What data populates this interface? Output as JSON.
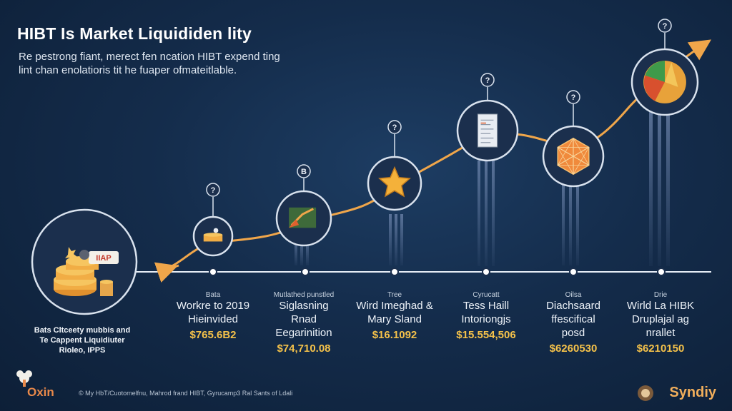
{
  "header": {
    "title": "HIBT Is Market Liquididen lity",
    "subtitle_line1": "Re pestrong fiant, merect fen ncation HIBT expend ting",
    "subtitle_line2": "lint chan enolatioris tit he fuaper ofmateitlable."
  },
  "left_node": {
    "badge": "IIAP",
    "description_line1": "Bats Cltceety mubbis and",
    "description_line2": "Te Cappent Liquidiuter",
    "description_line3": "Rioleo, IPPS"
  },
  "milestones": [
    {
      "small": "Bata",
      "name_line1": "Workre to 2019",
      "name_line2": "Hieinvided",
      "name_line3": "",
      "value": "$765.6B2",
      "badge": "?",
      "icon": "coin-stack-icon"
    },
    {
      "small": "Mutlathed punstled",
      "name_line1": "Siglasning",
      "name_line2": "Rnad",
      "name_line3": "Eegarinition",
      "value": "$74,710.08",
      "badge": "B",
      "icon": "rocket-chart-icon"
    },
    {
      "small": "Tree",
      "name_line1": "Wird Imeghad &",
      "name_line2": "Mary Sland",
      "name_line3": "",
      "value": "$16.1092",
      "badge": "?",
      "icon": "star-icon"
    },
    {
      "small": "Cyrucatt",
      "name_line1": "Tess Haill",
      "name_line2": "Intoriongjs",
      "name_line3": "",
      "value": "$15.554,506",
      "badge": "?",
      "icon": "document-icon"
    },
    {
      "small": "Oilsa",
      "name_line1": "Diachsaard",
      "name_line2": "ffescifical",
      "name_line3": "posd",
      "value": "$6260530",
      "badge": "?",
      "icon": "network-gem-icon"
    },
    {
      "small": "Drie",
      "name_line1": "Wirld La HIBK",
      "name_line2": "Druplajal ag",
      "name_line3": "nrallet",
      "value": "$6210150",
      "badge": "?",
      "icon": "pie-chart-icon"
    }
  ],
  "footer": {
    "brand_left": "Oxin",
    "text": "© My HbT/Cuotomelfnu, Mahrod frand HIBT, Gyrucamp3 Ral Sants of Ldali",
    "brand_right": "Syndiy"
  },
  "colors": {
    "background": "#142c4b",
    "line": "#f0a64a",
    "value": "#f5c24a",
    "node_fill": "#1b2f4d",
    "node_ring": "#d9e2ee"
  }
}
